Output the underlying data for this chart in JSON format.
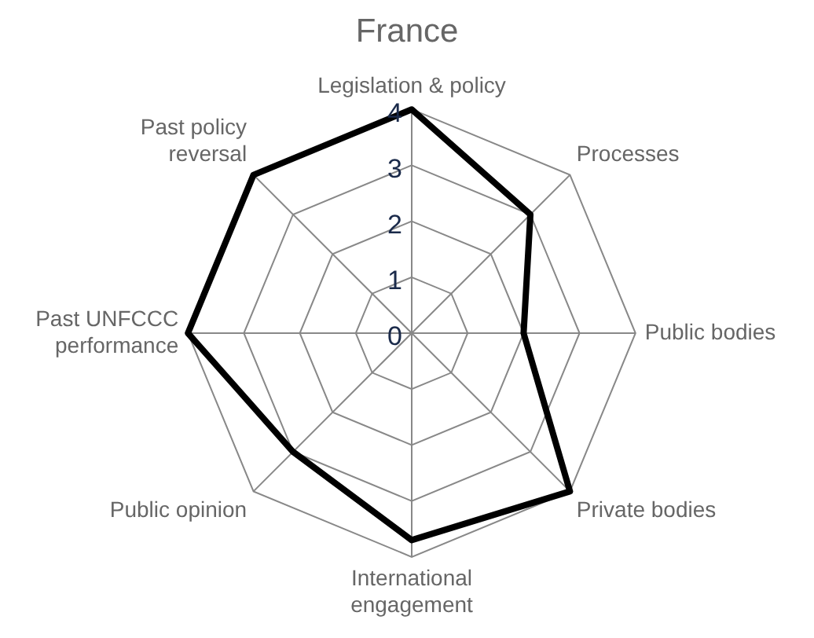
{
  "chart_data": {
    "type": "radar",
    "title": "France",
    "categories": [
      "Legislation & policy",
      "Processes",
      "Public bodies",
      "Private bodies",
      "International\nengagement",
      "Public opinion",
      "Past UNFCCC\nperformance",
      "Past policy\nreversal"
    ],
    "series": [
      {
        "color": "#000000",
        "values": [
          4,
          3,
          2,
          4,
          3.7,
          3,
          4,
          4
        ]
      }
    ],
    "ylim": [
      0,
      4
    ],
    "yticks": [
      0,
      1,
      2,
      3,
      4
    ],
    "grid": true,
    "legend": false,
    "marker": "none",
    "line_style": "solid"
  }
}
